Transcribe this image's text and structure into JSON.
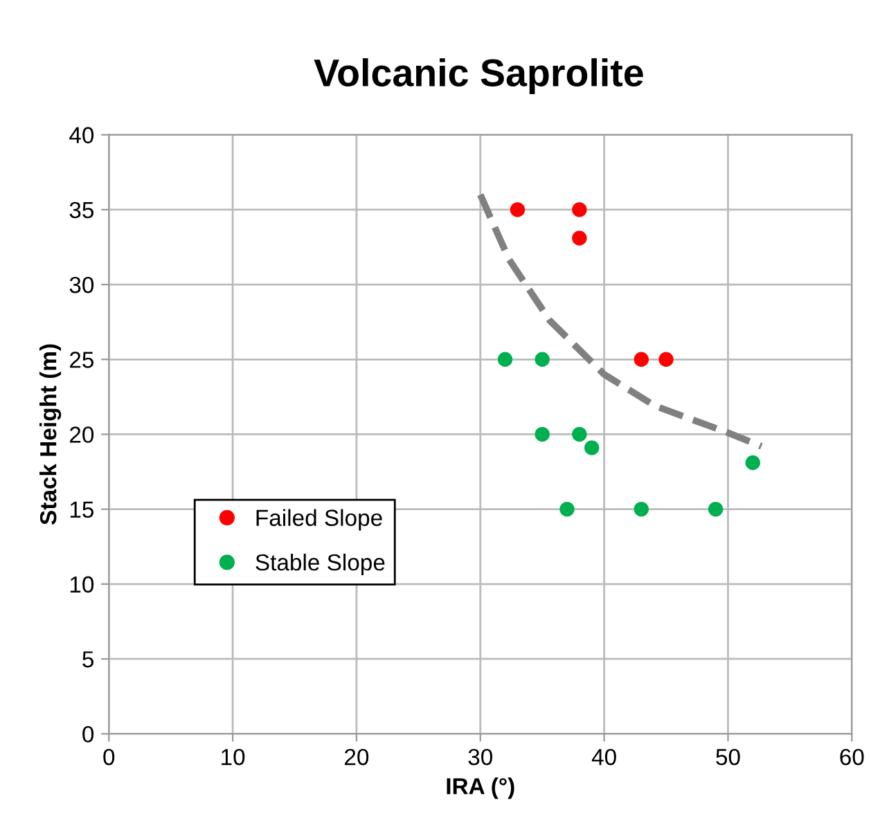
{
  "chart_data": {
    "type": "scatter",
    "title": "Volcanic Saprolite",
    "xlabel": "IRA (°)",
    "ylabel": "Stack Height (m)",
    "xlim": [
      0,
      60
    ],
    "xticks": [
      0,
      10,
      20,
      30,
      40,
      50,
      60
    ],
    "ylim": [
      0,
      40
    ],
    "yticks": [
      0,
      5,
      10,
      15,
      20,
      25,
      30,
      35,
      40
    ],
    "grid": true,
    "legend": "left",
    "marker": "circle",
    "series": [
      {
        "name": "Failed Slope",
        "color": "#ff0000",
        "x": [
          33,
          38,
          38,
          43,
          45
        ],
        "values": [
          35,
          35,
          33.1,
          25,
          25
        ]
      },
      {
        "name": "Stable Slope",
        "color": "#00b050",
        "x": [
          32,
          35,
          35,
          38,
          39,
          37,
          43,
          49,
          52
        ],
        "values": [
          25,
          25,
          20,
          20,
          19.1,
          15,
          15,
          15,
          18.1
        ]
      },
      {
        "type": "line",
        "color": "#808080",
        "line_style": "dashed",
        "marker": "none",
        "x": [
          30,
          32.3,
          35.6,
          40,
          44.1,
          50,
          52.7
        ],
        "values": [
          36,
          31.7,
          27.6,
          24.0,
          21.9,
          20.1,
          19.2
        ]
      }
    ]
  }
}
